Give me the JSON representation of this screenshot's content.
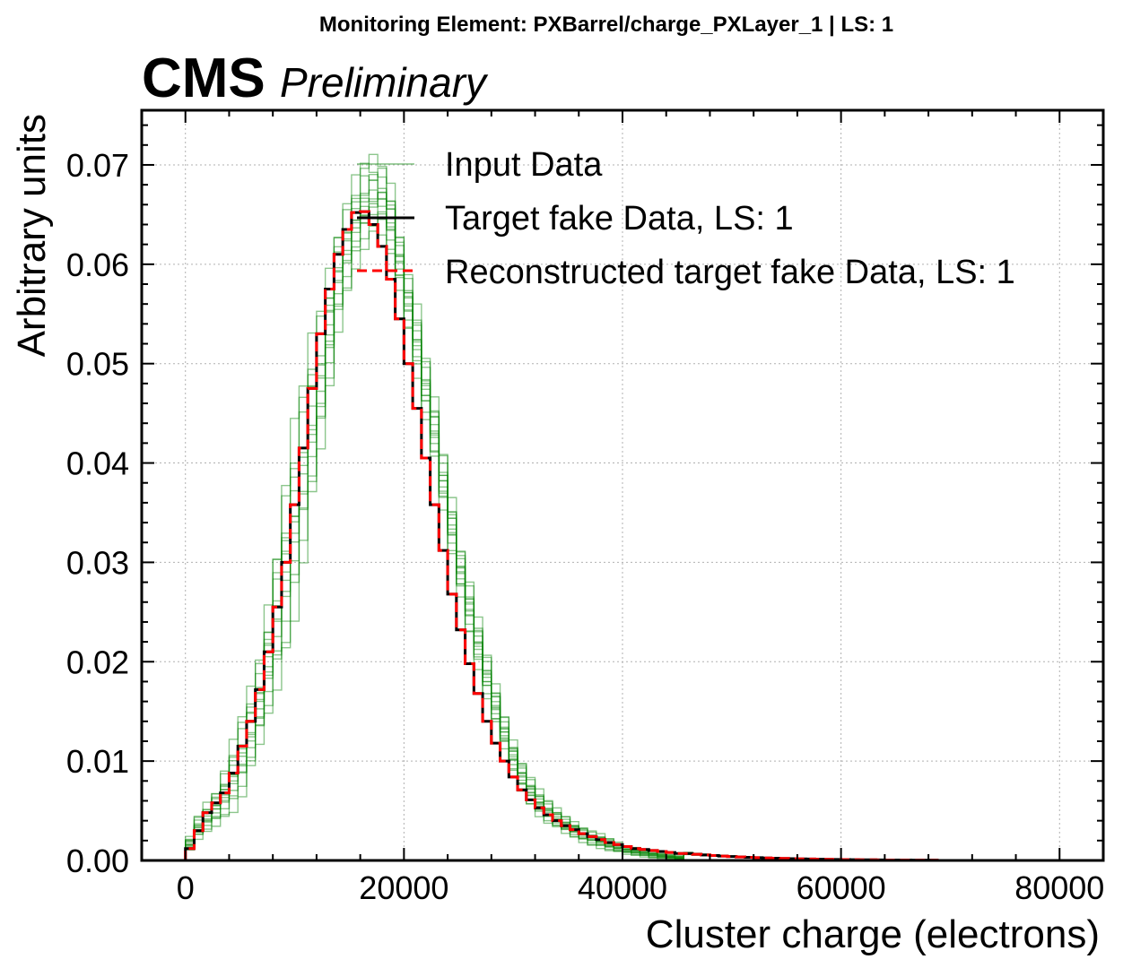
{
  "figure": {
    "suptitle": "Monitoring Element: PXBarrel/charge_PXLayer_1 | LS: 1",
    "experiment": "CMS",
    "status": "Preliminary"
  },
  "chart_data": {
    "type": "line",
    "style": "step histogram",
    "xlabel": "Cluster charge (electrons)",
    "ylabel": "Arbitrary units",
    "xlim": [
      -4000,
      84000
    ],
    "ylim": [
      0.0,
      0.0755
    ],
    "xticks": [
      "0",
      "20000",
      "40000",
      "60000",
      "80000"
    ],
    "yticks": [
      "0.00",
      "0.01",
      "0.02",
      "0.03",
      "0.04",
      "0.05",
      "0.06",
      "0.07"
    ],
    "grid": true,
    "legend_position": "top-right",
    "bin_width": 800,
    "bin_edges_range": [
      0,
      68800
    ],
    "input_band_count": 14,
    "series": [
      {
        "name": "Input Data",
        "color": "#008000",
        "linestyle": "solid",
        "render": "band of overlapping thin steps",
        "lower": [
          0.0008,
          0.0018,
          0.0025,
          0.0032,
          0.004,
          0.0048,
          0.006,
          0.008,
          0.0105,
          0.0132,
          0.0162,
          0.0198,
          0.024,
          0.029,
          0.034,
          0.0395,
          0.046,
          0.0525,
          0.0565,
          0.0595,
          0.061,
          0.0618,
          0.062,
          0.06,
          0.057,
          0.053,
          0.0485,
          0.044,
          0.0395,
          0.0345,
          0.03,
          0.0262,
          0.0225,
          0.0192,
          0.016,
          0.0132,
          0.0108,
          0.0086,
          0.0068,
          0.0054,
          0.0044,
          0.0036,
          0.003,
          0.0025,
          0.0021,
          0.0017,
          0.0014,
          0.0012,
          0.0009,
          0.0007,
          0.0005,
          0.0004,
          0.0003,
          0.0002,
          0.0001,
          0.0001,
          0.0
        ],
        "upper": [
          0.0025,
          0.0048,
          0.0062,
          0.0075,
          0.0095,
          0.0122,
          0.015,
          0.018,
          0.0215,
          0.027,
          0.0335,
          0.0395,
          0.0445,
          0.049,
          0.054,
          0.0575,
          0.061,
          0.065,
          0.067,
          0.069,
          0.0708,
          0.0715,
          0.071,
          0.069,
          0.064,
          0.0595,
          0.056,
          0.051,
          0.047,
          0.0418,
          0.0372,
          0.0322,
          0.0285,
          0.0245,
          0.021,
          0.018,
          0.015,
          0.0125,
          0.0104,
          0.0086,
          0.0072,
          0.0062,
          0.0054,
          0.0047,
          0.0041,
          0.0036,
          0.0031,
          0.0027,
          0.0023,
          0.0019,
          0.0016,
          0.0014,
          0.0012,
          0.001,
          0.0008,
          0.0006,
          0.0005
        ]
      },
      {
        "name": "Target fake Data, LS: 1",
        "color": "#000000",
        "linestyle": "solid",
        "head": [
          0.0012,
          0.003,
          0.0048,
          0.0058,
          0.0068,
          0.0088,
          0.0115,
          0.014,
          0.0172,
          0.021,
          0.0255,
          0.03,
          0.0358,
          0.0415,
          0.0475,
          0.053,
          0.0575,
          0.061,
          0.0635,
          0.0652,
          0.0653,
          0.064,
          0.0618,
          0.0585,
          0.0545,
          0.05,
          0.0455,
          0.0405,
          0.0358,
          0.0312,
          0.0268,
          0.0232,
          0.0198,
          0.0168,
          0.014,
          0.0118,
          0.01,
          0.0084,
          0.0071,
          0.0061,
          0.0053,
          0.0046,
          0.004,
          0.0035,
          0.0031,
          0.0027,
          0.0024,
          0.0021,
          0.0018,
          0.0016,
          0.0014,
          0.0012,
          0.0011,
          0.001,
          0.0009,
          0.0008,
          0.0007
        ],
        "tail_start_x": 45600,
        "tail_start_value": 0.0007,
        "tail_scale": 7000,
        "tail_end_x": 68800
      },
      {
        "name": "Reconstructed target fake Data, LS: 1",
        "color": "#ff0000",
        "linestyle": "dashed",
        "same_as": "Target fake Data, LS: 1"
      }
    ]
  }
}
